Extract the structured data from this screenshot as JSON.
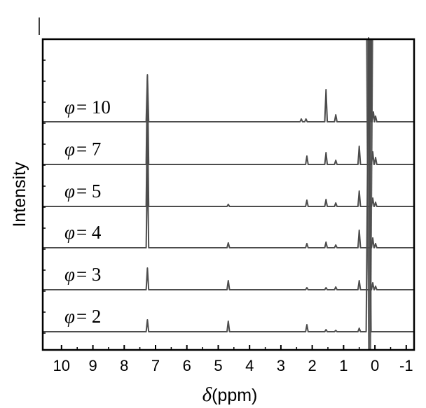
{
  "chart_data": {
    "type": "line",
    "xlabel_symbol": "δ",
    "xlabel_unit": "(ppm)",
    "ylabel": "Intensity",
    "xlim": [
      10.6,
      -1.25
    ],
    "x_reversed": true,
    "x_ticks": [
      10,
      9,
      8,
      7,
      6,
      5,
      4,
      3,
      2,
      1,
      0,
      -1
    ],
    "x_tick_labels": [
      "10",
      "9",
      "8",
      "7",
      "6",
      "5",
      "4",
      "3",
      "2",
      "1",
      "0",
      "-1"
    ],
    "grid": false,
    "legend": "none",
    "line_color": "#4d4d4d",
    "series": [
      {
        "label_symbol": "φ",
        "label_rest": "= 10",
        "peaks": [
          [
            7.26,
            65
          ],
          [
            2.35,
            4
          ],
          [
            2.2,
            4
          ],
          [
            1.56,
            46
          ],
          [
            1.25,
            10
          ],
          [
            0.15,
            92
          ],
          [
            0.05,
            14
          ],
          [
            -0.02,
            8
          ]
        ]
      },
      {
        "label_symbol": "φ",
        "label_rest": "= 7",
        "peaks": [
          [
            7.26,
            128
          ],
          [
            2.17,
            12
          ],
          [
            1.56,
            17
          ],
          [
            1.25,
            6
          ],
          [
            0.5,
            26
          ],
          [
            0.07,
            18
          ],
          [
            -0.02,
            10
          ]
        ]
      },
      {
        "label_symbol": "φ",
        "label_rest": "= 5",
        "peaks": [
          [
            7.26,
            138
          ],
          [
            4.68,
            3
          ],
          [
            2.17,
            9
          ],
          [
            1.56,
            10
          ],
          [
            1.25,
            5
          ],
          [
            0.5,
            22
          ],
          [
            0.07,
            12
          ],
          [
            -0.02,
            6
          ]
        ]
      },
      {
        "label_symbol": "φ",
        "label_rest": "= 4",
        "peaks": [
          [
            7.26,
            128
          ],
          [
            4.68,
            7
          ],
          [
            2.17,
            6
          ],
          [
            1.56,
            8
          ],
          [
            1.25,
            4
          ],
          [
            0.5,
            25
          ],
          [
            0.07,
            14
          ],
          [
            -0.02,
            6
          ]
        ]
      },
      {
        "label_symbol": "φ",
        "label_rest": "= 3",
        "peaks": [
          [
            7.26,
            31
          ],
          [
            4.68,
            13
          ],
          [
            2.17,
            3
          ],
          [
            1.56,
            3
          ],
          [
            1.25,
            4
          ],
          [
            0.5,
            13
          ],
          [
            0.07,
            10
          ],
          [
            -0.02,
            5
          ]
        ]
      },
      {
        "label_symbol": "φ",
        "label_rest": "= 2",
        "peaks": [
          [
            7.26,
            17
          ],
          [
            4.68,
            15
          ],
          [
            2.17,
            10
          ],
          [
            1.56,
            3
          ],
          [
            1.25,
            2
          ],
          [
            0.5,
            5
          ],
          [
            0.2,
            420
          ]
        ]
      }
    ]
  }
}
